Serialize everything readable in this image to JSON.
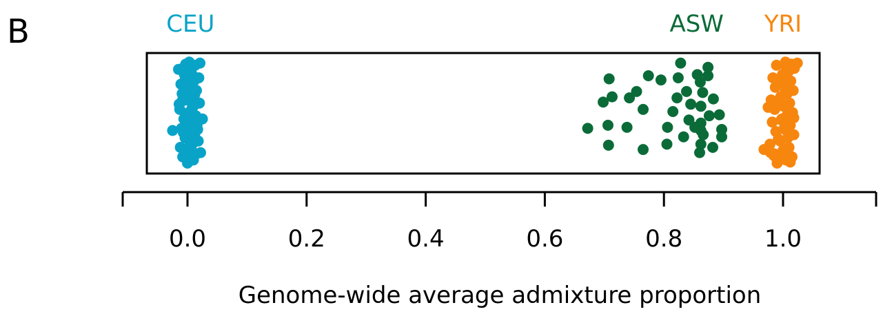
{
  "panel_label": "B",
  "chart_data": {
    "type": "scatter",
    "title": "",
    "xlabel": "Genome-wide average admixture proportion",
    "ylabel": "",
    "xlim": [
      -0.07,
      1.07
    ],
    "xticks": [
      0.0,
      0.2,
      0.4,
      0.6,
      0.8,
      1.0
    ],
    "xtick_labels": [
      "0.0",
      "0.2",
      "0.4",
      "0.6",
      "0.8",
      "1.0"
    ],
    "y_meaning": "jitter only (no axis)",
    "grid": false,
    "legend": "group labels above clusters",
    "series": [
      {
        "name": "CEU",
        "color": "#0aa3c8",
        "label_x": 0.005,
        "points": [
          [
            0.0,
            0.02
          ],
          [
            0.01,
            0.05
          ],
          [
            -0.008,
            0.08
          ],
          [
            0.015,
            0.11
          ],
          [
            0.003,
            0.14
          ],
          [
            -0.012,
            0.17
          ],
          [
            0.008,
            0.2
          ],
          [
            0.018,
            0.23
          ],
          [
            -0.004,
            0.26
          ],
          [
            0.012,
            0.29
          ],
          [
            0.0,
            0.32
          ],
          [
            -0.01,
            0.35
          ],
          [
            0.016,
            0.38
          ],
          [
            0.005,
            0.41
          ],
          [
            -0.006,
            0.44
          ],
          [
            0.014,
            0.47
          ],
          [
            0.002,
            0.5
          ],
          [
            -0.013,
            0.53
          ],
          [
            0.01,
            0.56
          ],
          [
            0.02,
            0.59
          ],
          [
            -0.003,
            0.62
          ],
          [
            0.007,
            0.65
          ],
          [
            -0.009,
            0.68
          ],
          [
            0.015,
            0.71
          ],
          [
            0.001,
            0.74
          ],
          [
            -0.011,
            0.77
          ],
          [
            0.011,
            0.8
          ],
          [
            0.019,
            0.83
          ],
          [
            -0.005,
            0.86
          ],
          [
            0.006,
            0.89
          ],
          [
            -0.008,
            0.92
          ],
          [
            0.013,
            0.95
          ],
          [
            0.003,
            0.98
          ],
          [
            0.009,
            0.07
          ],
          [
            -0.002,
            0.13
          ],
          [
            0.004,
            0.19
          ],
          [
            0.013,
            0.25
          ],
          [
            -0.007,
            0.31
          ],
          [
            0.006,
            0.37
          ],
          [
            0.011,
            0.43
          ],
          [
            -0.001,
            0.49
          ],
          [
            0.008,
            0.55
          ],
          [
            -0.009,
            0.61
          ],
          [
            0.012,
            0.67
          ],
          [
            0.004,
            0.73
          ],
          [
            -0.006,
            0.79
          ],
          [
            0.009,
            0.85
          ],
          [
            0.002,
            0.91
          ],
          [
            -0.003,
            0.96
          ],
          [
            0.017,
            0.34
          ],
          [
            -0.014,
            0.58
          ],
          [
            -0.025,
            0.33
          ],
          [
            0.025,
            0.44
          ],
          [
            0.022,
            0.12
          ],
          [
            -0.015,
            0.91
          ],
          [
            0.021,
            0.97
          ]
        ]
      },
      {
        "name": "ASW",
        "color": "#0b6b38",
        "label_x": 0.855,
        "points": [
          [
            0.828,
            0.97
          ],
          [
            0.874,
            0.93
          ],
          [
            0.856,
            0.86
          ],
          [
            0.874,
            0.85
          ],
          [
            0.824,
            0.83
          ],
          [
            0.708,
            0.82
          ],
          [
            0.774,
            0.85
          ],
          [
            0.795,
            0.81
          ],
          [
            0.861,
            0.79
          ],
          [
            0.838,
            0.7
          ],
          [
            0.865,
            0.69
          ],
          [
            0.754,
            0.7
          ],
          [
            0.713,
            0.65
          ],
          [
            0.742,
            0.64
          ],
          [
            0.883,
            0.63
          ],
          [
            0.822,
            0.64
          ],
          [
            0.698,
            0.6
          ],
          [
            0.862,
            0.56
          ],
          [
            0.845,
            0.58
          ],
          [
            0.765,
            0.53
          ],
          [
            0.815,
            0.51
          ],
          [
            0.893,
            0.48
          ],
          [
            0.876,
            0.47
          ],
          [
            0.842,
            0.43
          ],
          [
            0.862,
            0.4
          ],
          [
            0.706,
            0.38
          ],
          [
            0.738,
            0.36
          ],
          [
            0.806,
            0.36
          ],
          [
            0.852,
            0.36
          ],
          [
            0.897,
            0.34
          ],
          [
            0.672,
            0.35
          ],
          [
            0.862,
            0.33
          ],
          [
            0.866,
            0.29
          ],
          [
            0.833,
            0.27
          ],
          [
            0.897,
            0.27
          ],
          [
            0.805,
            0.2
          ],
          [
            0.862,
            0.2
          ],
          [
            0.707,
            0.19
          ],
          [
            0.882,
            0.17
          ],
          [
            0.765,
            0.15
          ],
          [
            0.86,
            0.12
          ]
        ]
      },
      {
        "name": "YRI",
        "color": "#f7860f",
        "label_x": 1.0,
        "points": [
          [
            0.99,
            0.02
          ],
          [
            1.005,
            0.05
          ],
          [
            1.015,
            0.08
          ],
          [
            0.985,
            0.11
          ],
          [
            1.0,
            0.14
          ],
          [
            1.01,
            0.17
          ],
          [
            0.978,
            0.2
          ],
          [
            0.995,
            0.23
          ],
          [
            1.008,
            0.26
          ],
          [
            1.018,
            0.29
          ],
          [
            0.988,
            0.32
          ],
          [
            1.002,
            0.35
          ],
          [
            1.012,
            0.38
          ],
          [
            0.982,
            0.41
          ],
          [
            0.998,
            0.44
          ],
          [
            1.006,
            0.47
          ],
          [
            1.016,
            0.5
          ],
          [
            0.986,
            0.53
          ],
          [
            1.001,
            0.56
          ],
          [
            1.011,
            0.59
          ],
          [
            0.98,
            0.62
          ],
          [
            0.996,
            0.65
          ],
          [
            1.007,
            0.68
          ],
          [
            1.017,
            0.71
          ],
          [
            0.987,
            0.74
          ],
          [
            1.003,
            0.77
          ],
          [
            1.013,
            0.8
          ],
          [
            0.983,
            0.83
          ],
          [
            0.999,
            0.86
          ],
          [
            1.009,
            0.89
          ],
          [
            1.019,
            0.92
          ],
          [
            0.989,
            0.95
          ],
          [
            1.004,
            0.98
          ],
          [
            0.994,
            0.07
          ],
          [
            1.009,
            0.16
          ],
          [
            0.992,
            0.25
          ],
          [
            1.003,
            0.34
          ],
          [
            0.997,
            0.43
          ],
          [
            1.01,
            0.52
          ],
          [
            0.993,
            0.61
          ],
          [
            1.004,
            0.7
          ],
          [
            0.99,
            0.79
          ],
          [
            1.006,
            0.88
          ],
          [
            1.014,
            0.96
          ],
          [
            0.968,
            0.15
          ],
          [
            0.979,
            0.12
          ],
          [
            0.985,
            0.09
          ],
          [
            1.005,
            0.93
          ],
          [
            1.024,
            0.97
          ],
          [
            1.018,
            0.45
          ],
          [
            0.975,
            0.55
          ],
          [
            1.012,
            0.03
          ]
        ]
      }
    ]
  }
}
